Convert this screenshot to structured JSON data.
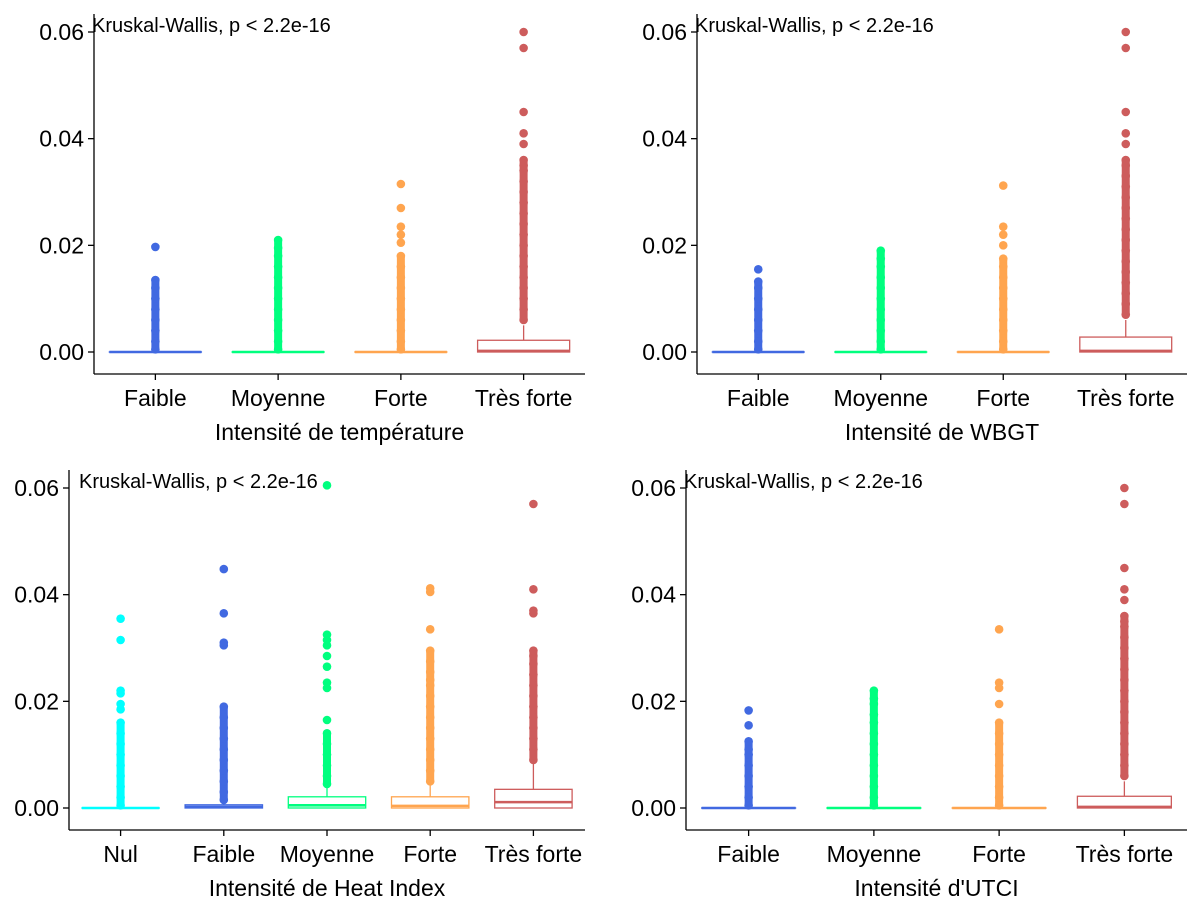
{
  "chart_data": [
    {
      "type": "boxplot",
      "annotation": "Kruskal-Wallis, p < 2.2e-16",
      "xlabel": "Intensité de température",
      "ylabel": "",
      "ylim": [
        0,
        0.06
      ],
      "yticks": [
        "0.00",
        "0.02",
        "0.04",
        "0.06"
      ],
      "categories": [
        "Faible",
        "Moyenne",
        "Forte",
        "Très forte"
      ],
      "colors": [
        "#4169E1",
        "#00FF7F",
        "#FFA54F",
        "#CD5C5C"
      ],
      "boxes": [
        {
          "q1": 0,
          "median": 0,
          "q3": 0,
          "whisker_high": 0,
          "outliers": [
            0.0005,
            0.002,
            0.004,
            0.006,
            0.008,
            0.01,
            0.012,
            0.0135,
            0.0197
          ]
        },
        {
          "q1": 0,
          "median": 0,
          "q3": 0,
          "whisker_high": 0,
          "outliers": [
            0.0005,
            0.002,
            0.004,
            0.006,
            0.008,
            0.01,
            0.012,
            0.014,
            0.016,
            0.018,
            0.0195,
            0.021
          ]
        },
        {
          "q1": 0,
          "median": 0,
          "q3": 0,
          "whisker_high": 0,
          "outliers": [
            0.0005,
            0.002,
            0.004,
            0.006,
            0.008,
            0.01,
            0.012,
            0.014,
            0.016,
            0.018,
            0.0205,
            0.022,
            0.0235,
            0.027,
            0.0315
          ]
        },
        {
          "q1": 0,
          "median": 0.0002,
          "q3": 0.0022,
          "whisker_high": 0.005,
          "outliers": [
            0.006,
            0.008,
            0.01,
            0.012,
            0.014,
            0.016,
            0.018,
            0.02,
            0.022,
            0.024,
            0.026,
            0.028,
            0.03,
            0.032,
            0.034,
            0.035,
            0.036,
            0.039,
            0.041,
            0.045,
            0.057,
            0.06
          ]
        }
      ]
    },
    {
      "type": "boxplot",
      "annotation": "Kruskal-Wallis, p < 2.2e-16",
      "xlabel": "Intensité de WBGT",
      "ylabel": "",
      "ylim": [
        0,
        0.06
      ],
      "yticks": [
        "0.00",
        "0.02",
        "0.04",
        "0.06"
      ],
      "categories": [
        "Faible",
        "Moyenne",
        "Forte",
        "Très forte"
      ],
      "colors": [
        "#4169E1",
        "#00FF7F",
        "#FFA54F",
        "#CD5C5C"
      ],
      "boxes": [
        {
          "q1": 0,
          "median": 0,
          "q3": 0,
          "whisker_high": 0,
          "outliers": [
            0.0005,
            0.002,
            0.004,
            0.006,
            0.008,
            0.01,
            0.012,
            0.0132,
            0.0155
          ]
        },
        {
          "q1": 0,
          "median": 0,
          "q3": 0,
          "whisker_high": 0,
          "outliers": [
            0.0005,
            0.002,
            0.004,
            0.006,
            0.008,
            0.01,
            0.012,
            0.014,
            0.016,
            0.0175,
            0.019
          ]
        },
        {
          "q1": 0,
          "median": 0,
          "q3": 0,
          "whisker_high": 0,
          "outliers": [
            0.0005,
            0.002,
            0.004,
            0.006,
            0.008,
            0.01,
            0.012,
            0.014,
            0.016,
            0.0175,
            0.02,
            0.022,
            0.0235,
            0.0312
          ]
        },
        {
          "q1": 0,
          "median": 0.0002,
          "q3": 0.0028,
          "whisker_high": 0.006,
          "outliers": [
            0.007,
            0.009,
            0.011,
            0.013,
            0.015,
            0.017,
            0.019,
            0.021,
            0.023,
            0.025,
            0.027,
            0.029,
            0.031,
            0.033,
            0.035,
            0.036,
            0.039,
            0.041,
            0.045,
            0.057,
            0.06
          ]
        }
      ]
    },
    {
      "type": "boxplot",
      "annotation": "Kruskal-Wallis, p < 2.2e-16",
      "xlabel": "Intensité de Heat Index",
      "ylabel": "",
      "ylim": [
        0,
        0.06
      ],
      "yticks": [
        "0.00",
        "0.02",
        "0.04",
        "0.06"
      ],
      "categories": [
        "Nul",
        "Faible",
        "Moyenne",
        "Forte",
        "Très forte"
      ],
      "colors": [
        "#00FFFF",
        "#4169E1",
        "#00FF7F",
        "#FFA54F",
        "#CD5C5C"
      ],
      "boxes": [
        {
          "q1": 0,
          "median": 0,
          "q3": 0,
          "whisker_high": 0,
          "outliers": [
            0.0005,
            0.002,
            0.004,
            0.006,
            0.008,
            0.01,
            0.012,
            0.014,
            0.016,
            0.0185,
            0.0195,
            0.0215,
            0.022,
            0.0315,
            0.0355
          ]
        },
        {
          "q1": 0,
          "median": 0.0002,
          "q3": 0.0006,
          "whisker_high": 0.0012,
          "outliers": [
            0.0015,
            0.003,
            0.005,
            0.007,
            0.009,
            0.011,
            0.013,
            0.015,
            0.017,
            0.019,
            0.0305,
            0.031,
            0.0365,
            0.0448
          ]
        },
        {
          "q1": 0,
          "median": 0.0005,
          "q3": 0.0021,
          "whisker_high": 0.004,
          "outliers": [
            0.0045,
            0.006,
            0.008,
            0.01,
            0.012,
            0.014,
            0.0165,
            0.0225,
            0.0235,
            0.0265,
            0.0285,
            0.0305,
            0.0315,
            0.0325,
            0.0605
          ]
        },
        {
          "q1": 0,
          "median": 0.0004,
          "q3": 0.0021,
          "whisker_high": 0.0045,
          "outliers": [
            0.005,
            0.007,
            0.009,
            0.011,
            0.013,
            0.015,
            0.017,
            0.019,
            0.021,
            0.023,
            0.024,
            0.0255,
            0.0275,
            0.0295,
            0.0335,
            0.0405,
            0.0412
          ]
        },
        {
          "q1": 0,
          "median": 0.0011,
          "q3": 0.0035,
          "whisker_high": 0.0085,
          "outliers": [
            0.009,
            0.011,
            0.013,
            0.015,
            0.017,
            0.019,
            0.021,
            0.023,
            0.025,
            0.027,
            0.0285,
            0.0295,
            0.0365,
            0.037,
            0.041,
            0.057
          ]
        }
      ]
    },
    {
      "type": "boxplot",
      "annotation": "Kruskal-Wallis, p < 2.2e-16",
      "xlabel": "Intensité d'UTCI",
      "ylabel": "",
      "ylim": [
        0,
        0.06
      ],
      "yticks": [
        "0.00",
        "0.02",
        "0.04",
        "0.06"
      ],
      "categories": [
        "Faible",
        "Moyenne",
        "Forte",
        "Très forte"
      ],
      "colors": [
        "#4169E1",
        "#00FF7F",
        "#FFA54F",
        "#CD5C5C"
      ],
      "boxes": [
        {
          "q1": 0,
          "median": 0,
          "q3": 0,
          "whisker_high": 0,
          "outliers": [
            0.0005,
            0.002,
            0.004,
            0.006,
            0.008,
            0.01,
            0.011,
            0.0125,
            0.0155,
            0.0183
          ]
        },
        {
          "q1": 0,
          "median": 0,
          "q3": 0,
          "whisker_high": 0,
          "outliers": [
            0.0005,
            0.002,
            0.004,
            0.006,
            0.008,
            0.01,
            0.012,
            0.014,
            0.016,
            0.0175,
            0.0195,
            0.0205,
            0.022
          ]
        },
        {
          "q1": 0,
          "median": 0,
          "q3": 0,
          "whisker_high": 0,
          "outliers": [
            0.0005,
            0.002,
            0.004,
            0.006,
            0.008,
            0.01,
            0.012,
            0.014,
            0.016,
            0.0195,
            0.0225,
            0.0235,
            0.0335
          ]
        },
        {
          "q1": 0,
          "median": 0.0002,
          "q3": 0.0022,
          "whisker_high": 0.005,
          "outliers": [
            0.006,
            0.008,
            0.01,
            0.012,
            0.014,
            0.016,
            0.018,
            0.02,
            0.022,
            0.024,
            0.026,
            0.028,
            0.03,
            0.032,
            0.034,
            0.035,
            0.036,
            0.039,
            0.041,
            0.045,
            0.057,
            0.06
          ]
        }
      ]
    }
  ]
}
